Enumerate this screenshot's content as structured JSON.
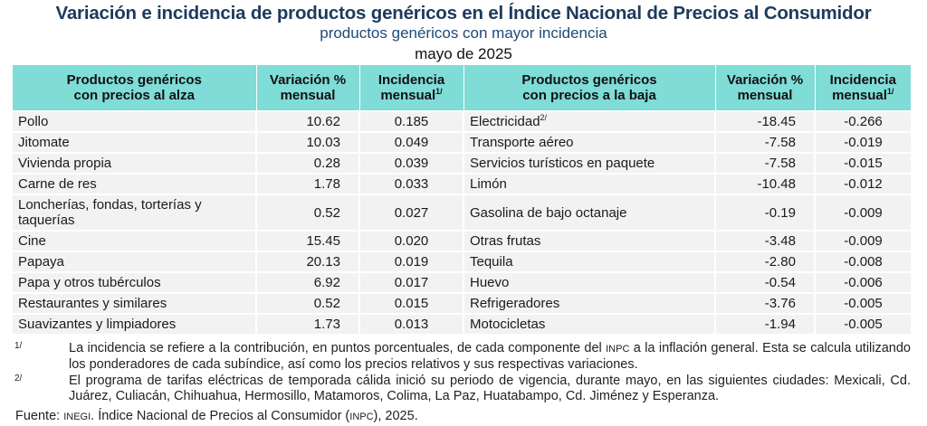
{
  "title": "Variación e incidencia de productos genéricos en el Índice Nacional de Precios al Consumidor",
  "subtitle": "productos genéricos con mayor incidencia",
  "period": "mayo de 2025",
  "headers": {
    "up_product_1": "Productos genéricos",
    "up_product_2": "con precios al alza",
    "var_1": "Variación %",
    "var_2": "mensual",
    "inc_1": "Incidencia",
    "inc_2": "mensual",
    "inc_sup": "1/",
    "down_product_1": "Productos genéricos",
    "down_product_2": "con precios a la baja"
  },
  "colors": {
    "header_bg": "#7fdcd6",
    "title": "#1d3a5c",
    "row_bg": "#f2f2f2"
  },
  "rows": [
    {
      "up": "Pollo",
      "up_var": "10.62",
      "up_inc": "0.185",
      "down": "Electricidad",
      "down_sup": "2/",
      "down_var": "-18.45",
      "down_inc": "-0.266"
    },
    {
      "up": "Jitomate",
      "up_var": "10.03",
      "up_inc": "0.049",
      "down": "Transporte aéreo",
      "down_var": "-7.58",
      "down_inc": "-0.019"
    },
    {
      "up": "Vivienda propia",
      "up_var": "0.28",
      "up_inc": "0.039",
      "down": "Servicios turísticos en paquete",
      "down_var": "-7.58",
      "down_inc": "-0.015"
    },
    {
      "up": "Carne de res",
      "up_var": "1.78",
      "up_inc": "0.033",
      "down": "Limón",
      "down_var": "-10.48",
      "down_inc": "-0.012"
    },
    {
      "up": "Loncherías, fondas, torterías y taquerías",
      "up_var": "0.52",
      "up_inc": "0.027",
      "down": "Gasolina de bajo octanaje",
      "down_var": "-0.19",
      "down_inc": "-0.009"
    },
    {
      "up": "Cine",
      "up_var": "15.45",
      "up_inc": "0.020",
      "down": "Otras frutas",
      "down_var": "-3.48",
      "down_inc": "-0.009"
    },
    {
      "up": "Papaya",
      "up_var": "20.13",
      "up_inc": "0.019",
      "down": "Tequila",
      "down_var": "-2.80",
      "down_inc": "-0.008"
    },
    {
      "up": "Papa y otros tubérculos",
      "up_var": "6.92",
      "up_inc": "0.017",
      "down": "Huevo",
      "down_var": "-0.54",
      "down_inc": "-0.006"
    },
    {
      "up": "Restaurantes y similares",
      "up_var": "0.52",
      "up_inc": "0.015",
      "down": "Refrigeradores",
      "down_var": "-3.76",
      "down_inc": "-0.005"
    },
    {
      "up": "Suavizantes y limpiadores",
      "up_var": "1.73",
      "up_inc": "0.013",
      "down": "Motocicletas",
      "down_var": "-1.94",
      "down_inc": "-0.005"
    }
  ],
  "footnotes": [
    {
      "mark": "1/",
      "text": "La incidencia se refiere a la contribución, en puntos porcentuales, de cada componente del INPC a la inflación general. Esta se calcula utilizando los ponderadores de cada subíndice, así como los precios relativos y sus respectivas variaciones."
    },
    {
      "mark": "2/",
      "text": "El programa de tarifas eléctricas de temporada cálida inició su periodo de vigencia, durante mayo, en las siguientes ciudades: Mexicali, Cd. Juárez, Culiacán, Chihuahua, Hermosillo, Matamoros, Colima, La Paz, Huatabampo, Cd. Jiménez y Esperanza."
    }
  ],
  "source": "Fuente: INEGI. Índice Nacional de Precios al Consumidor (INPC), 2025."
}
